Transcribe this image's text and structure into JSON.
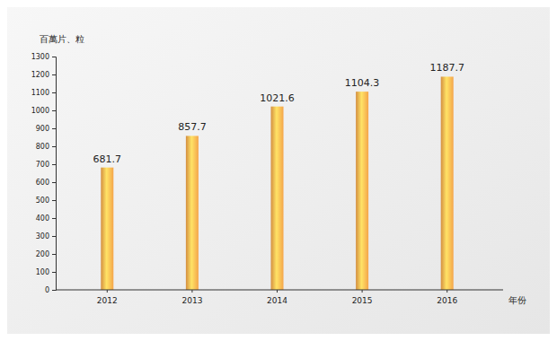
{
  "chart_data": {
    "type": "bar",
    "y_label": "百萬片、粒",
    "x_label": "年份",
    "categories": [
      "2012",
      "2013",
      "2014",
      "2015",
      "2016"
    ],
    "values": [
      681.7,
      857.7,
      1021.6,
      1104.3,
      1187.7
    ],
    "color": "#f4a54a",
    "ylim": [
      0,
      1300
    ],
    "yticks": [
      0,
      100,
      200,
      300,
      400,
      500,
      600,
      700,
      800,
      900,
      1000,
      1100,
      1200,
      1300
    ],
    "grid": false,
    "data_labels": true
  }
}
